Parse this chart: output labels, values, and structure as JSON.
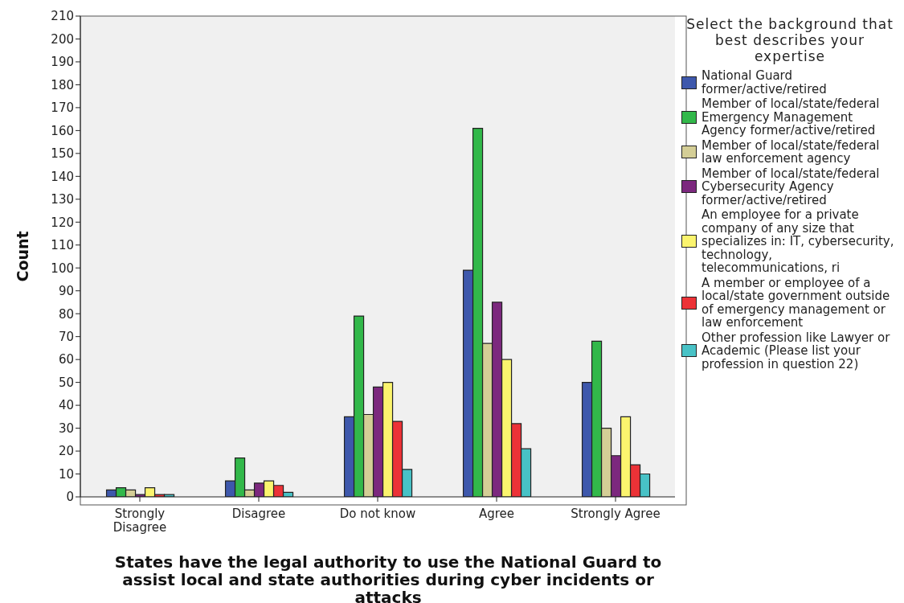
{
  "chart_data": {
    "type": "bar",
    "xlabel": "States have the legal authority to use the National Guard to assist local and state authorities during cyber incidents or attacks",
    "ylabel": "Count",
    "legend_title": "Select the background that best describes your expertise",
    "categories": [
      "Strongly Disagree",
      "Disagree",
      "Do not know",
      "Agree",
      "Strongly Agree"
    ],
    "series": [
      {
        "name": "National Guard former/active/retired",
        "color": "#3e58ac",
        "values": [
          3,
          7,
          35,
          99,
          50
        ]
      },
      {
        "name": "Member of local/state/federal Emergency Management Agency former/active/retired",
        "color": "#32b84a",
        "values": [
          4,
          17,
          79,
          161,
          68
        ]
      },
      {
        "name": "Member of local/state/federal law enforcement agency",
        "color": "#d4ce96",
        "values": [
          3,
          3,
          36,
          67,
          30
        ]
      },
      {
        "name": "Member of local/state/federal Cybersecurity Agency former/active/retired",
        "color": "#7c287e",
        "values": [
          1,
          6,
          48,
          85,
          18
        ]
      },
      {
        "name": "An employee for a private company of any size that specializes in: IT, cybersecurity, technology, telecommunications, ri",
        "color": "#fbf46e",
        "values": [
          4,
          7,
          50,
          60,
          35
        ]
      },
      {
        "name": "A member or employee of a local/state government outside of emergency management or law enforcement",
        "color": "#ec3237",
        "values": [
          1,
          5,
          33,
          32,
          14
        ]
      },
      {
        "name": "Other profession like Lawyer or Academic (Please list your profession in question 22)",
        "color": "#48c2c6",
        "values": [
          1,
          2,
          12,
          21,
          10
        ]
      }
    ],
    "ylim": [
      0,
      210
    ],
    "yticks": [
      0,
      10,
      20,
      30,
      40,
      50,
      60,
      70,
      80,
      90,
      100,
      110,
      120,
      130,
      140,
      150,
      160,
      170,
      180,
      190,
      200,
      210
    ],
    "grid": false,
    "legend": "right"
  }
}
